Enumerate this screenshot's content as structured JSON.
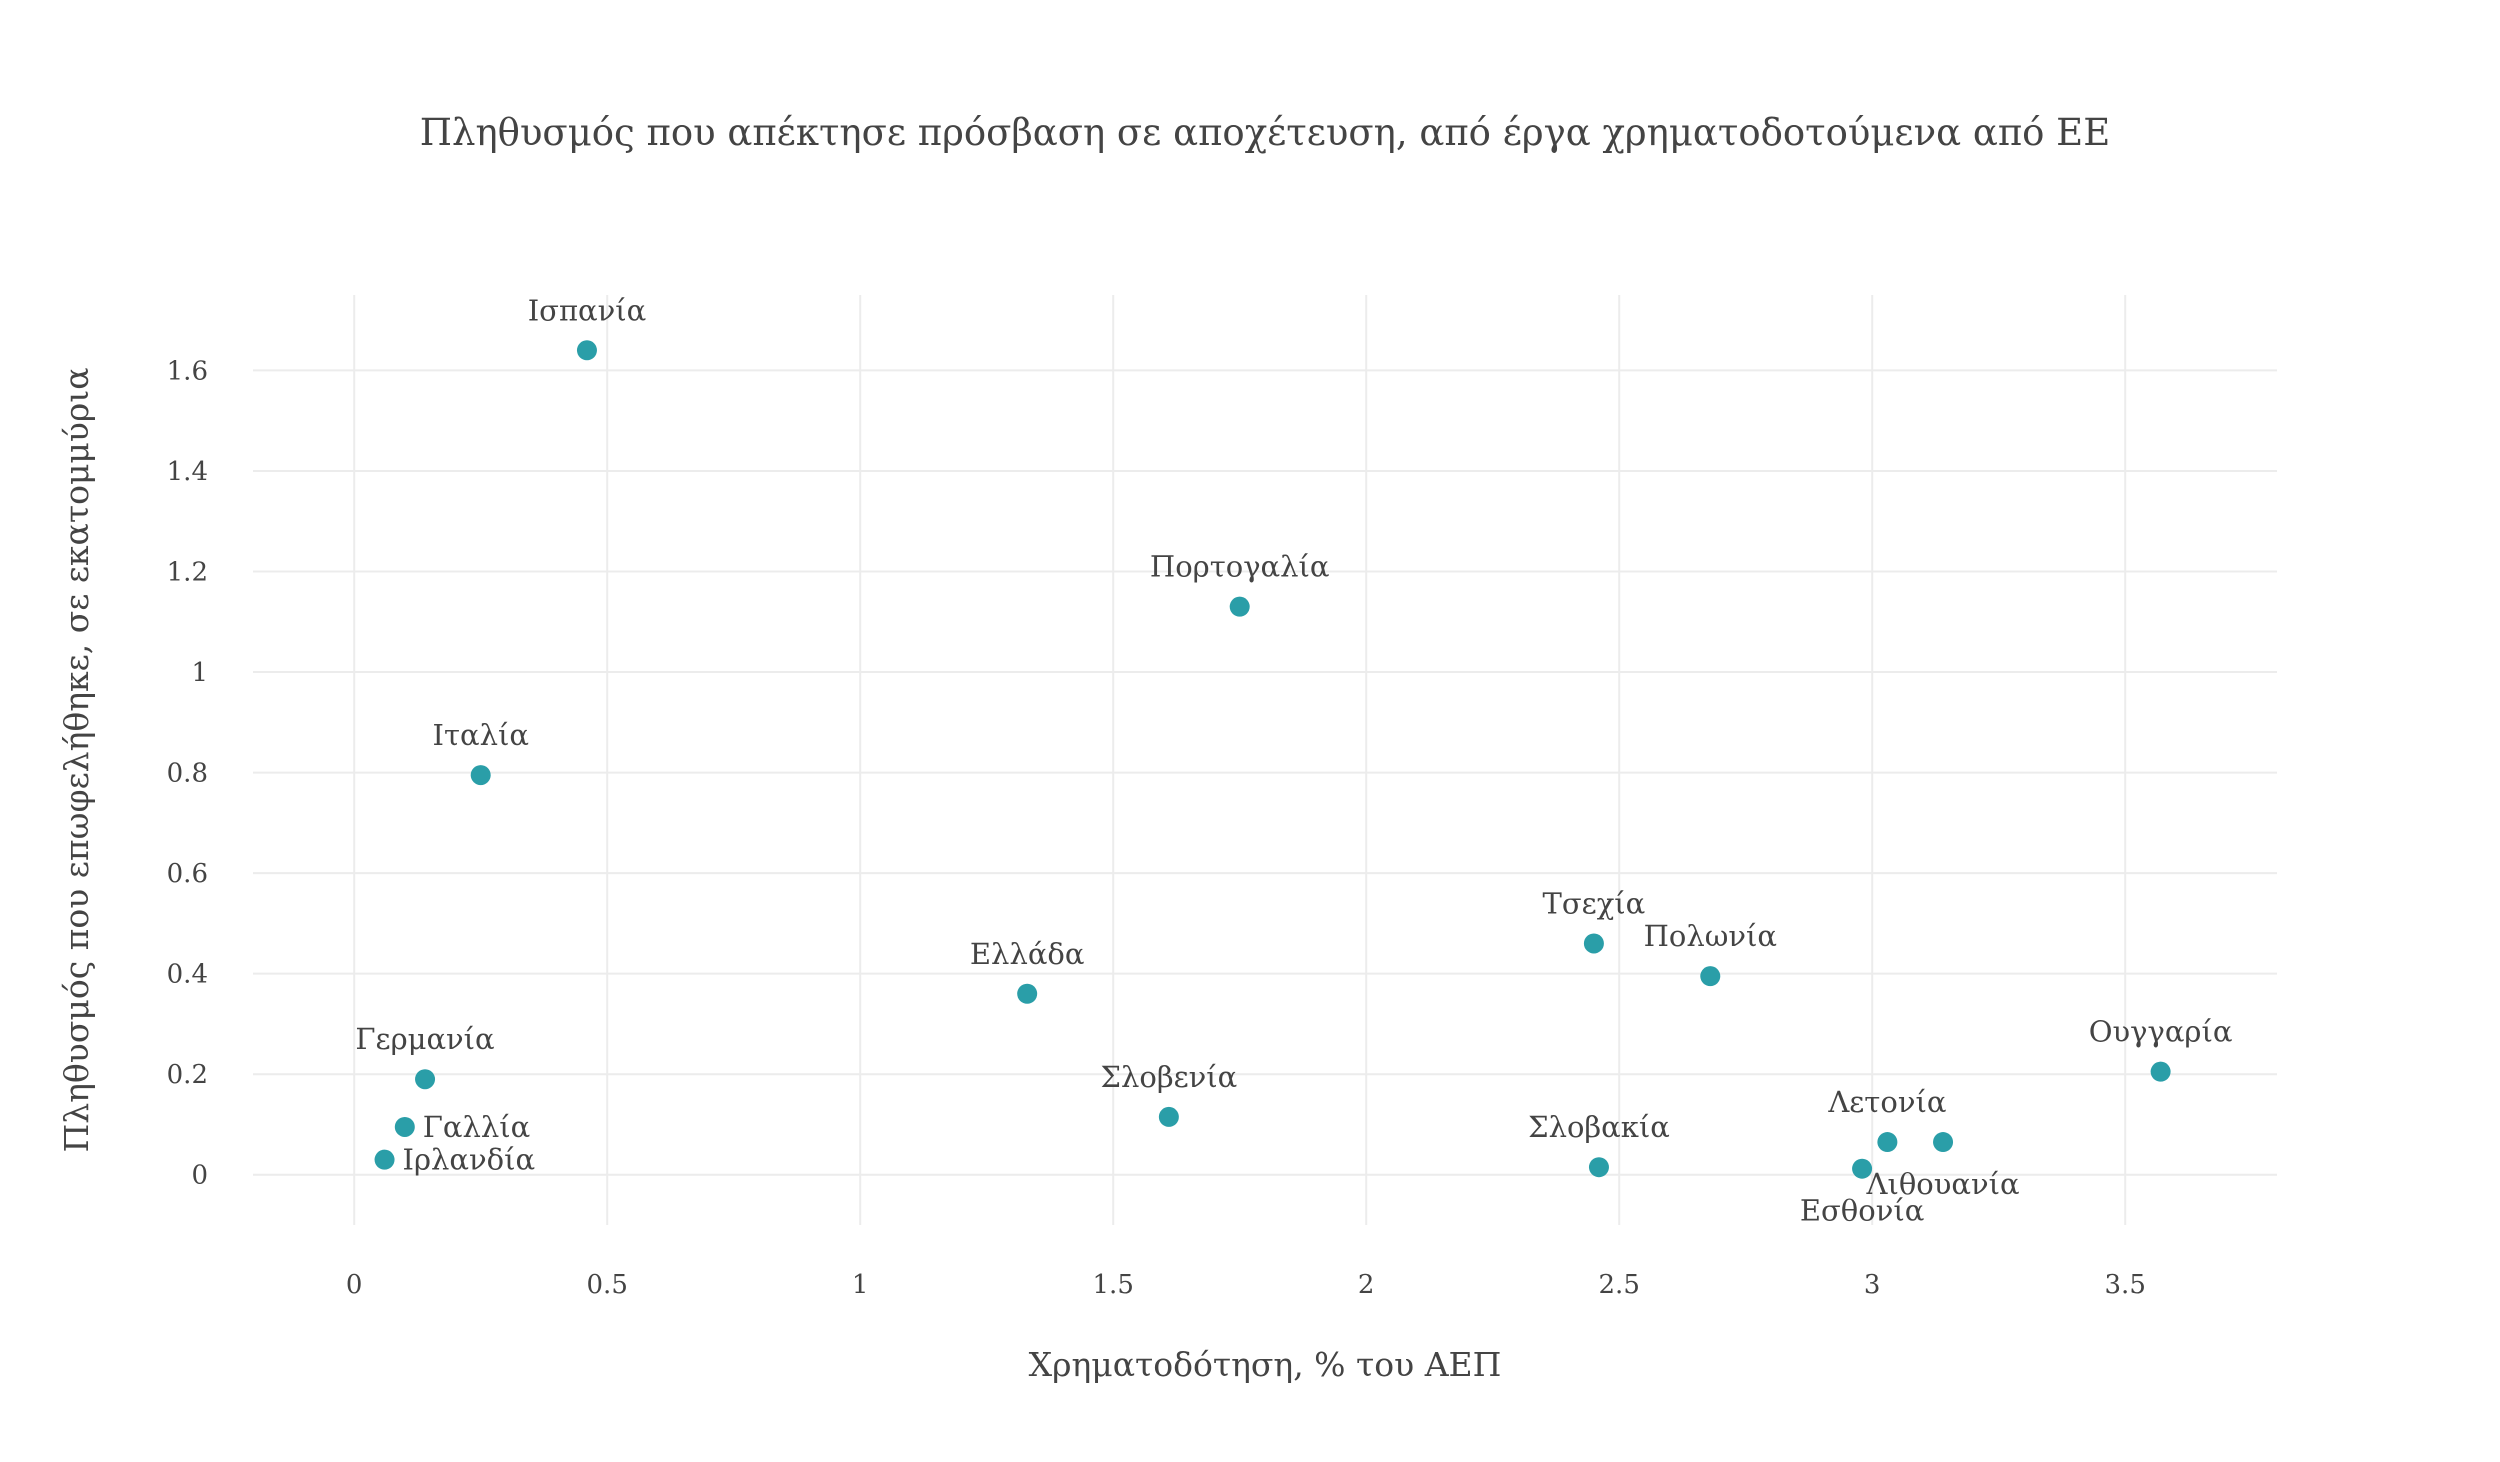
{
  "chart_data": {
    "type": "scatter",
    "title": "Πληθυσμός που απέκτησε πρόσβαση σε αποχέτευση, από έργα χρηματοδοτούμενα από ΕΕ",
    "xlabel": "Χρηματοδότηση, % του ΑΕΠ",
    "ylabel": "Πληθυσμός που επωφελήθηκε, σε εκατομμύρια",
    "xlim": [
      -0.2,
      3.8
    ],
    "ylim": [
      -0.1,
      1.75
    ],
    "x_ticks": [
      "0",
      "0.5",
      "1",
      "1.5",
      "2",
      "2.5",
      "3",
      "3.5"
    ],
    "x_tick_values": [
      0,
      0.5,
      1,
      1.5,
      2,
      2.5,
      3,
      3.5
    ],
    "y_ticks": [
      "0",
      "0.2",
      "0.4",
      "0.6",
      "0.8",
      "1",
      "1.2",
      "1.4",
      "1.6"
    ],
    "y_tick_values": [
      0,
      0.2,
      0.4,
      0.6,
      0.8,
      1,
      1.2,
      1.4,
      1.6
    ],
    "grid": true,
    "marker_color": "#2a9ea8",
    "points": [
      {
        "label": "Ισπανία",
        "x": 0.46,
        "y": 1.64,
        "label_pos": "top"
      },
      {
        "label": "Πορτογαλία",
        "x": 1.75,
        "y": 1.13,
        "label_pos": "top"
      },
      {
        "label": "Ιταλία",
        "x": 0.25,
        "y": 0.795,
        "label_pos": "top"
      },
      {
        "label": "Τσεχία",
        "x": 2.45,
        "y": 0.46,
        "label_pos": "top"
      },
      {
        "label": "Πολωνία",
        "x": 2.68,
        "y": 0.395,
        "label_pos": "top"
      },
      {
        "label": "Ελλάδα",
        "x": 1.33,
        "y": 0.36,
        "label_pos": "top"
      },
      {
        "label": "Ουγγαρία",
        "x": 3.57,
        "y": 0.205,
        "label_pos": "top"
      },
      {
        "label": "Γερμανία",
        "x": 0.14,
        "y": 0.19,
        "label_pos": "top"
      },
      {
        "label": "Σλοβενία",
        "x": 1.61,
        "y": 0.115,
        "label_pos": "top"
      },
      {
        "label": "Γαλλία",
        "x": 0.1,
        "y": 0.095,
        "label_pos": "right"
      },
      {
        "label": "Λετονία",
        "x": 3.03,
        "y": 0.065,
        "label_pos": "top"
      },
      {
        "label": "Λιθουανία",
        "x": 3.14,
        "y": 0.065,
        "label_pos": "bottom"
      },
      {
        "label": "Ιρλανδία",
        "x": 0.06,
        "y": 0.03,
        "label_pos": "right"
      },
      {
        "label": "Σλοβακία",
        "x": 2.46,
        "y": 0.015,
        "label_pos": "top"
      },
      {
        "label": "Εσθονία",
        "x": 2.98,
        "y": 0.012,
        "label_pos": "bottom"
      }
    ]
  }
}
